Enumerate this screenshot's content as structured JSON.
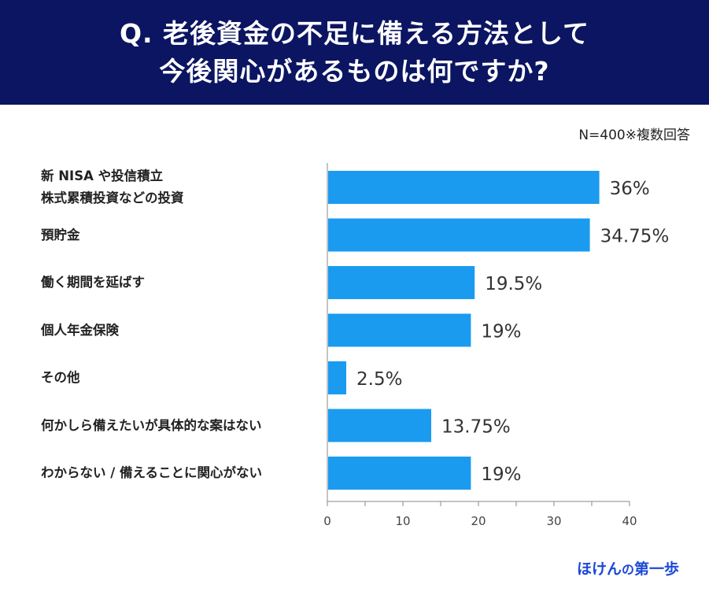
{
  "header": {
    "title_line1": "Q. 老後資金の不足に備える方法として",
    "title_line2": "今後関心があるものは何ですか?"
  },
  "note": "N=400※複数回答",
  "brand": {
    "part1": "ほけん",
    "part2": "の",
    "part3": "第一歩"
  },
  "colors": {
    "header_bg": "#0b1561",
    "bar": "#1a9bf0",
    "brand": "#1f49d6"
  },
  "chart_data": {
    "type": "bar",
    "orientation": "horizontal",
    "categories": [
      [
        "新 NISA や投信積立",
        "株式累積投資などの投資"
      ],
      [
        "預貯金"
      ],
      [
        "働く期間を延ばす"
      ],
      [
        "個人年金保険"
      ],
      [
        "その他"
      ],
      [
        "何かしら備えたいが具体的な案はない"
      ],
      [
        "わからない / 備えることに関心がない"
      ]
    ],
    "values": [
      36,
      34.75,
      19.5,
      19,
      2.5,
      13.75,
      19
    ],
    "data_labels": [
      "36%",
      "34.75%",
      "19.5%",
      "19%",
      "2.5%",
      "13.75%",
      "19%"
    ],
    "xlim": [
      0,
      40
    ],
    "xticks": [
      0,
      10,
      20,
      30,
      40
    ],
    "grid": false,
    "legend": "none"
  }
}
